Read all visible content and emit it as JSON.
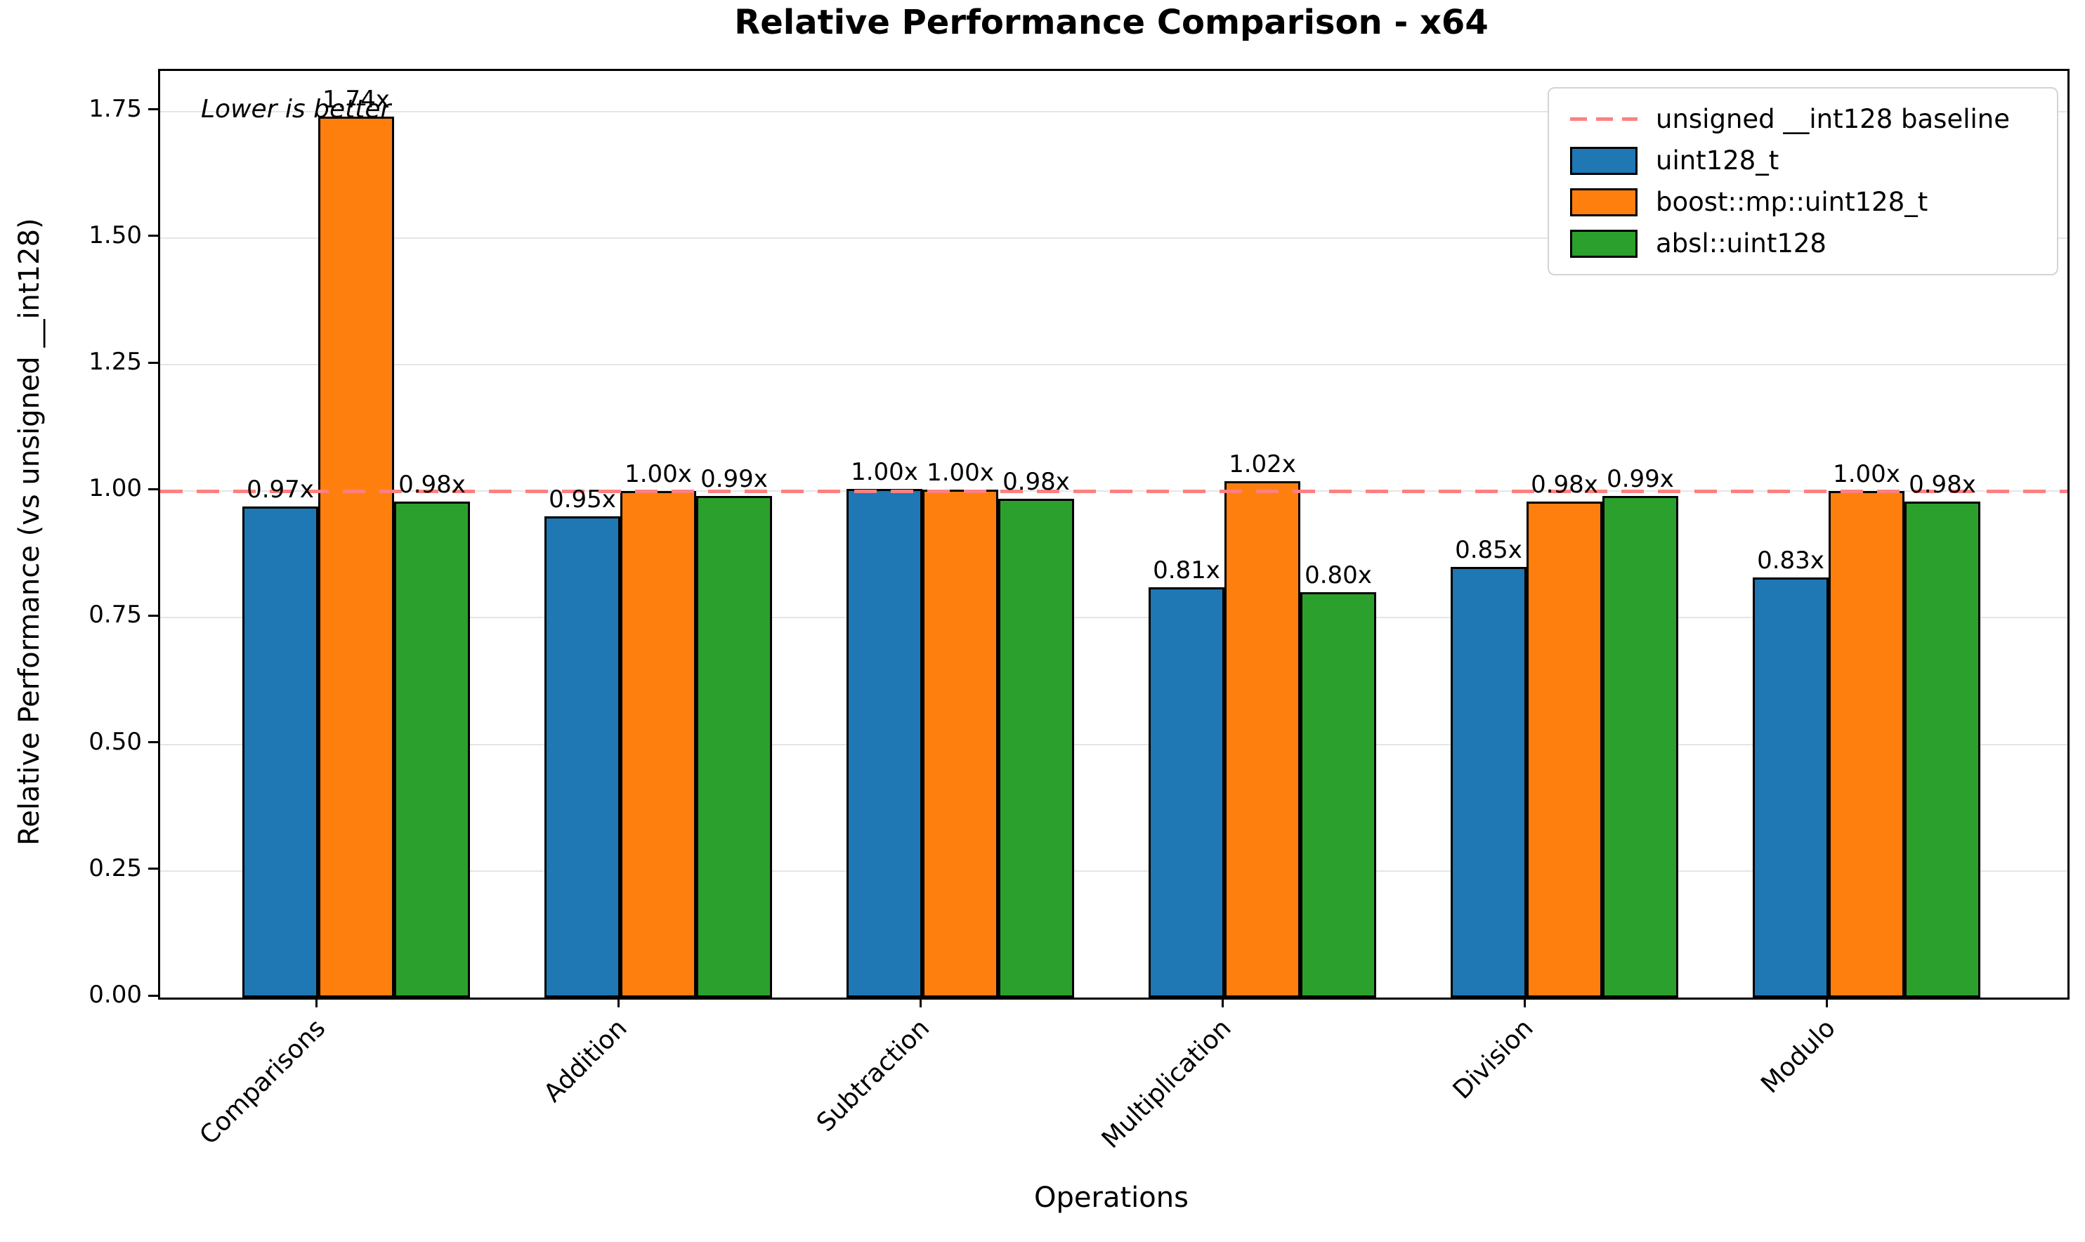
{
  "chart_data": {
    "type": "bar",
    "title": "Relative Performance Comparison - x64",
    "xlabel": "Operations",
    "ylabel": "Relative Performance (vs unsigned __int128)",
    "annotation": "Lower is better",
    "categories": [
      "Comparisons",
      "Addition",
      "Subtraction",
      "Multiplication",
      "Division",
      "Modulo"
    ],
    "series": [
      {
        "name": "uint128_t",
        "color": "#1f77b4",
        "values": [
          0.97,
          0.95,
          1.005,
          0.81,
          0.85,
          0.83
        ],
        "labels": [
          "0.97x",
          "0.95x",
          "1.00x",
          "0.81x",
          "0.85x",
          "0.83x"
        ]
      },
      {
        "name": "boost::mp::uint128_t",
        "color": "#ff7f0e",
        "values": [
          1.74,
          1.0,
          1.003,
          1.02,
          0.98,
          1.0
        ],
        "labels": [
          "1.74x",
          "1.00x",
          "1.00x",
          "1.02x",
          "0.98x",
          "1.00x"
        ]
      },
      {
        "name": "absl::uint128",
        "color": "#2ca02c",
        "values": [
          0.98,
          0.99,
          0.985,
          0.8,
          0.99,
          0.98
        ],
        "labels": [
          "0.98x",
          "0.99x",
          "0.98x",
          "0.80x",
          "0.99x",
          "0.98x"
        ]
      }
    ],
    "baseline": {
      "label": "unsigned __int128 baseline",
      "value": 1.0,
      "color": "#ff8080",
      "style": "dashed"
    },
    "yticks": [
      0,
      0.25,
      0.5,
      0.75,
      1.0,
      1.25,
      1.5,
      1.75
    ],
    "ytick_labels": [
      "0.00",
      "0.25",
      "0.50",
      "0.75",
      "1.00",
      "1.25",
      "1.50",
      "1.75"
    ],
    "ylim": [
      0,
      1.83
    ],
    "grid": "horizontal",
    "legend_position": "upper right",
    "colors": {
      "grid": "#e5e5e5",
      "spine": "#000000",
      "background": "#ffffff"
    }
  }
}
